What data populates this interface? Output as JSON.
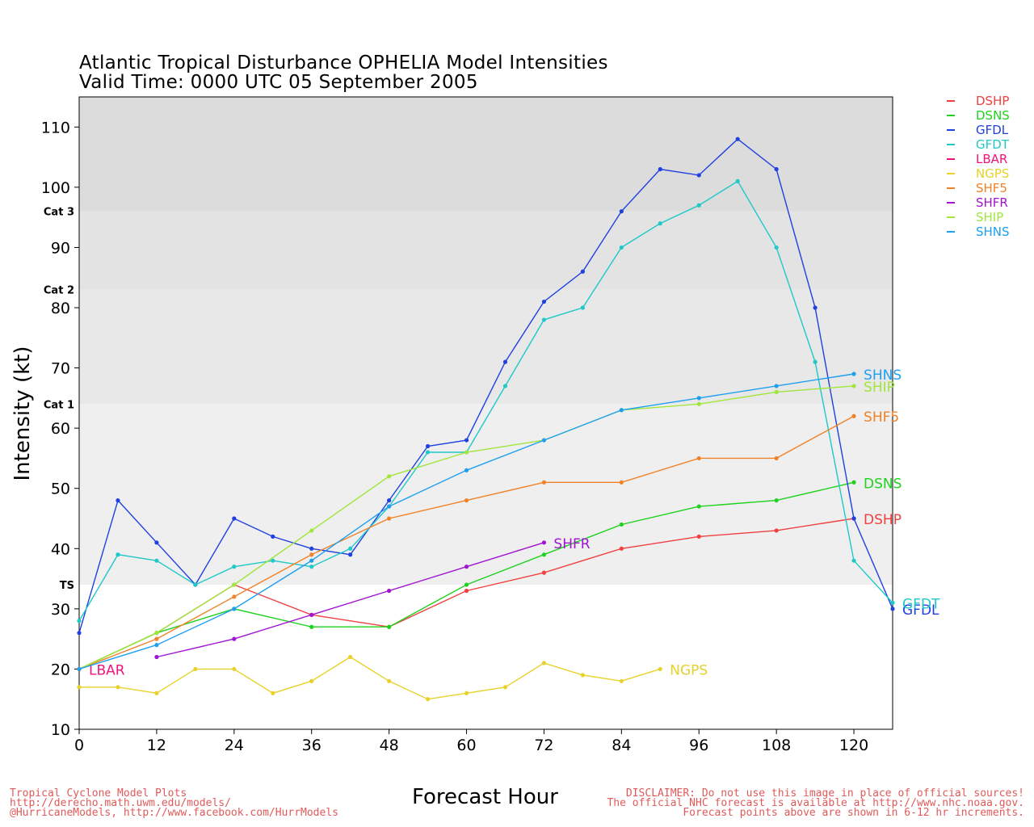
{
  "title": "Atlantic Tropical Disturbance OPHELIA Model Intensities",
  "subtitle": "Valid Time: 0000 UTC 05 September 2005",
  "footer_left": [
    "Tropical Cyclone Model Plots",
    "http://derecho.math.uwm.edu/models/",
    "@HurricaneModels, http://www.facebook.com/HurrModels"
  ],
  "footer_right": [
    "DISCLAIMER: Do not use this image in place of official sources!",
    "The official NHC forecast is available at http://www.nhc.noaa.gov.",
    "Forecast points above are shown in 6-12 hr increments."
  ],
  "chart_data": {
    "type": "line",
    "xlabel": "Forecast Hour",
    "ylabel": "Intensity (kt)",
    "xlim": [
      0,
      126
    ],
    "ylim": [
      10,
      115
    ],
    "xticks": [
      0,
      12,
      24,
      36,
      48,
      60,
      72,
      84,
      96,
      108,
      120
    ],
    "yticks": [
      10,
      20,
      30,
      40,
      50,
      60,
      70,
      80,
      90,
      100,
      110
    ],
    "grid": false,
    "legend_position": "right",
    "bands": [
      {
        "label": "TS",
        "from": 34,
        "to": 64,
        "color": "#efefef"
      },
      {
        "label": "Cat 1",
        "from": 64,
        "to": 83,
        "color": "#e8e8e8"
      },
      {
        "label": "Cat 2",
        "from": 83,
        "to": 96,
        "color": "#e3e3e3"
      },
      {
        "label": "Cat 3",
        "from": 96,
        "to": 115,
        "color": "#dcdcdc"
      }
    ],
    "series": [
      {
        "name": "DSHP",
        "color": "#f04040",
        "end_label": true,
        "x": [
          0,
          12,
          24,
          36,
          48,
          60,
          72,
          84,
          96,
          108,
          120
        ],
        "y": [
          20,
          26,
          34,
          29,
          27,
          33,
          36,
          40,
          42,
          43,
          45
        ]
      },
      {
        "name": "DSNS",
        "color": "#1ed21e",
        "end_label": true,
        "x": [
          0,
          12,
          24,
          36,
          48,
          60,
          72,
          84,
          96,
          108,
          120
        ],
        "y": [
          20,
          26,
          30,
          27,
          27,
          34,
          39,
          44,
          47,
          48,
          51
        ]
      },
      {
        "name": "GFDL",
        "color": "#2040e0",
        "end_label": true,
        "x": [
          0,
          6,
          12,
          18,
          24,
          30,
          36,
          42,
          48,
          54,
          60,
          66,
          72,
          78,
          84,
          90,
          96,
          102,
          108,
          114,
          120,
          126
        ],
        "y": [
          26,
          48,
          41,
          34,
          45,
          42,
          40,
          39,
          48,
          57,
          58,
          71,
          81,
          86,
          96,
          103,
          102,
          108,
          103,
          80,
          45,
          30
        ]
      },
      {
        "name": "GFDT",
        "color": "#20c8c8",
        "end_label": true,
        "x": [
          0,
          6,
          12,
          18,
          24,
          30,
          36,
          42,
          48,
          54,
          60,
          66,
          72,
          78,
          84,
          90,
          96,
          102,
          108,
          114,
          120,
          126
        ],
        "y": [
          28,
          39,
          38,
          34,
          37,
          38,
          37,
          40,
          47,
          56,
          56,
          67,
          78,
          80,
          90,
          94,
          97,
          101,
          90,
          71,
          38,
          31
        ]
      },
      {
        "name": "LBAR",
        "color": "#f0147a",
        "end_label": true,
        "x": [
          0
        ],
        "y": [
          20
        ]
      },
      {
        "name": "NGPS",
        "color": "#e6d22a",
        "end_label": true,
        "x": [
          0,
          6,
          12,
          18,
          24,
          30,
          36,
          42,
          48,
          54,
          60,
          66,
          72,
          78,
          84,
          90
        ],
        "y": [
          17,
          17,
          16,
          20,
          20,
          16,
          18,
          22,
          18,
          15,
          16,
          17,
          21,
          19,
          18,
          20
        ]
      },
      {
        "name": "SHF5",
        "color": "#f08228",
        "end_label": true,
        "x": [
          0,
          12,
          24,
          36,
          48,
          60,
          72,
          84,
          96,
          108,
          120
        ],
        "y": [
          20,
          25,
          32,
          39,
          45,
          48,
          51,
          51,
          55,
          55,
          62
        ]
      },
      {
        "name": "SHFR",
        "color": "#a014d2",
        "end_label": true,
        "x": [
          12,
          24,
          36,
          48,
          60,
          72
        ],
        "y": [
          22,
          25,
          29,
          33,
          37,
          41
        ]
      },
      {
        "name": "SHIP",
        "color": "#a0e63c",
        "end_label": true,
        "x": [
          0,
          12,
          24,
          36,
          48,
          60,
          72,
          84,
          96,
          108,
          120
        ],
        "y": [
          20,
          26,
          34,
          43,
          52,
          56,
          58,
          63,
          64,
          66,
          67
        ]
      },
      {
        "name": "SHNS",
        "color": "#1ea0f0",
        "end_label": true,
        "x": [
          0,
          12,
          24,
          36,
          48,
          60,
          72,
          84,
          96,
          108,
          120
        ],
        "y": [
          20,
          24,
          30,
          38,
          47,
          53,
          58,
          63,
          65,
          67,
          69
        ]
      }
    ]
  }
}
